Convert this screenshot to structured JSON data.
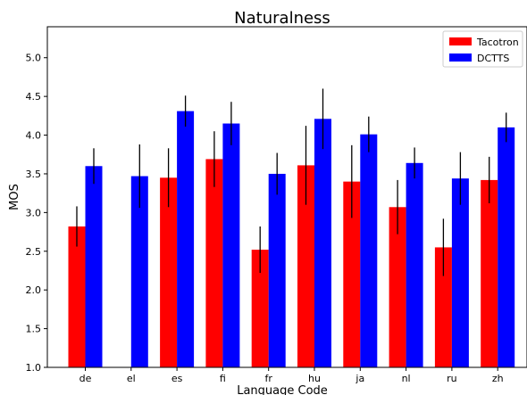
{
  "chart_data": {
    "type": "bar",
    "title": "Naturalness",
    "xlabel": "Language Code",
    "ylabel": "MOS",
    "categories": [
      "de",
      "el",
      "es",
      "fi",
      "fr",
      "hu",
      "ja",
      "nl",
      "ru",
      "zh"
    ],
    "ylim": [
      1.0,
      5.4
    ],
    "yticks": [
      "1.0",
      "1.5",
      "2.0",
      "2.5",
      "3.0",
      "3.5",
      "4.0",
      "4.5",
      "5.0"
    ],
    "grid": false,
    "legend_position": "top-right",
    "series": [
      {
        "name": "Tacotron",
        "color": "#ff0000",
        "values": [
          2.82,
          null,
          3.45,
          3.69,
          2.52,
          3.61,
          3.4,
          3.07,
          2.55,
          3.42
        ],
        "error": [
          0.26,
          null,
          0.38,
          0.36,
          0.3,
          0.51,
          0.47,
          0.35,
          0.37,
          0.3
        ]
      },
      {
        "name": "DCTTS",
        "color": "#0000ff",
        "values": [
          3.6,
          3.47,
          4.31,
          4.15,
          3.5,
          4.21,
          4.01,
          3.64,
          3.44,
          4.1
        ],
        "error": [
          0.23,
          0.41,
          0.2,
          0.28,
          0.27,
          0.39,
          0.23,
          0.2,
          0.34,
          0.19
        ]
      }
    ],
    "error_bar_color": "#000000"
  }
}
